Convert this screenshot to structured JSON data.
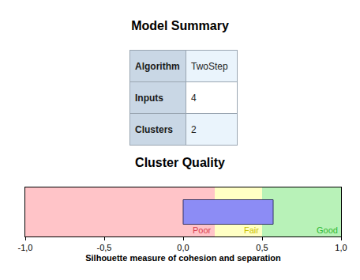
{
  "model_summary": {
    "title": "Model Summary",
    "rows": [
      [
        "Algorithm",
        "TwoStep"
      ],
      [
        "Inputs",
        4
      ],
      [
        "Clusters",
        2
      ]
    ]
  },
  "chart_data": {
    "type": "bar",
    "title": "Cluster Quality",
    "x_label": "Silhouette measure of cohesion and separation",
    "orientation": "horizontal",
    "categories": [
      null
    ],
    "values": [
      0.57
    ],
    "color": "#8c8cf5",
    "xlim": [
      -1,
      1
    ],
    "xticks": [
      {
        "value": -1,
        "label": "-1,0"
      },
      {
        "value": -0.5,
        "label": "-0,5"
      },
      {
        "value": 0,
        "label": "0,0"
      },
      {
        "value": 0.5,
        "label": "0,5"
      },
      {
        "value": 1,
        "label": "1,0"
      }
    ],
    "bands": [
      {
        "name": "Poor",
        "from": -1,
        "to": 0.2,
        "color": "#ffc4c8",
        "text_color": "#d9404c"
      },
      {
        "name": "Fair",
        "from": 0.2,
        "to": 0.5,
        "color": "#ffffc4",
        "text_color": "#c8c000"
      },
      {
        "name": "Good",
        "from": 0.5,
        "to": 1,
        "color": "#b8f2b8",
        "text_color": "#2fb82f"
      }
    ],
    "grid": false,
    "tick_labels": "x"
  }
}
